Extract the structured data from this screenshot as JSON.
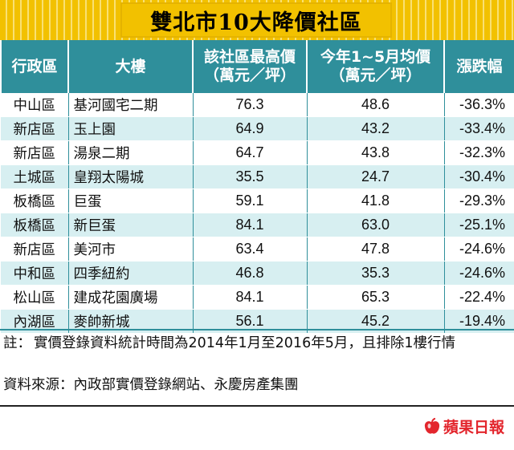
{
  "title": "雙北市10大降價社區",
  "headers": {
    "district": "行政區",
    "building": "大樓",
    "max_price": [
      "該社區最高價",
      "（萬元／坪）"
    ],
    "avg_price": [
      "今年1~5月均價",
      "（萬元／坪）"
    ],
    "change": "漲跌幅"
  },
  "chart_data": {
    "type": "table",
    "title": "雙北市10大降價社區",
    "columns": [
      "行政區",
      "大樓",
      "該社區最高價（萬元／坪）",
      "今年1~5月均價（萬元／坪）",
      "漲跌幅"
    ],
    "rows": [
      [
        "中山區",
        "基河國宅二期",
        "76.3",
        "48.6",
        "-36.3%"
      ],
      [
        "新店區",
        "玉上園",
        "64.9",
        "43.2",
        "-33.4%"
      ],
      [
        "新店區",
        "湯泉二期",
        "64.7",
        "43.8",
        "-32.3%"
      ],
      [
        "土城區",
        "皇翔太陽城",
        "35.5",
        "24.7",
        "-30.4%"
      ],
      [
        "板橋區",
        "巨蛋",
        "59.1",
        "41.8",
        "-29.3%"
      ],
      [
        "板橋區",
        "新巨蛋",
        "84.1",
        "63.0",
        "-25.1%"
      ],
      [
        "新店區",
        "美河市",
        "63.4",
        "47.8",
        "-24.6%"
      ],
      [
        "中和區",
        "四季紐約",
        "46.8",
        "35.3",
        "-24.6%"
      ],
      [
        "松山區",
        "建成花園廣場",
        "84.1",
        "65.3",
        "-22.4%"
      ],
      [
        "內湖區",
        "麥帥新城",
        "56.1",
        "45.2",
        "-19.4%"
      ]
    ]
  },
  "note_label": "註：",
  "note": "實價登錄資料統計時間為2014年1月至2016年5月，且排除1樓行情",
  "source": "資料來源：內政部實價登錄網站、永慶房產集團",
  "logo_text": "蘋果日報",
  "colors": {
    "title_bg": "#f2c100",
    "header_bg": "#2f8f9b",
    "row_alt_bg": "#d7eff1",
    "logo": "#e3262d"
  }
}
